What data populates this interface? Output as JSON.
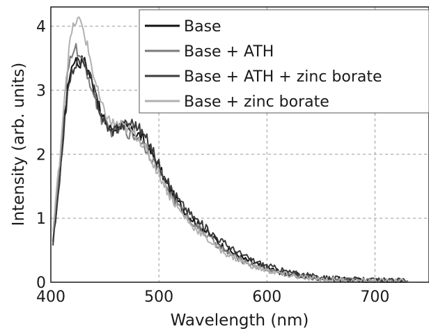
{
  "chart_data": {
    "type": "line",
    "xlabel": "Wavelength (nm)",
    "ylabel": "Intensity (arb. units)",
    "xlim": [
      400,
      750
    ],
    "ylim": [
      0,
      4.3
    ],
    "x_ticks": [
      400,
      500,
      600,
      700
    ],
    "y_ticks": [
      0,
      1,
      2,
      3,
      4
    ],
    "grid": true,
    "legend_position": "top-right",
    "series": [
      {
        "name": "Base",
        "color": "#111111",
        "points": [
          [
            402,
            0.6
          ],
          [
            408,
            1.6
          ],
          [
            413,
            2.7
          ],
          [
            418,
            3.3
          ],
          [
            422,
            3.5
          ],
          [
            426,
            3.4
          ],
          [
            430,
            3.5
          ],
          [
            435,
            3.3
          ],
          [
            440,
            3.0
          ],
          [
            447,
            2.6
          ],
          [
            455,
            2.4
          ],
          [
            465,
            2.45
          ],
          [
            475,
            2.35
          ],
          [
            482,
            2.3
          ],
          [
            490,
            2.1
          ],
          [
            500,
            1.8
          ],
          [
            510,
            1.45
          ],
          [
            520,
            1.2
          ],
          [
            530,
            1.0
          ],
          [
            540,
            0.85
          ],
          [
            550,
            0.7
          ],
          [
            560,
            0.55
          ],
          [
            570,
            0.45
          ],
          [
            580,
            0.35
          ],
          [
            590,
            0.28
          ],
          [
            600,
            0.22
          ],
          [
            620,
            0.13
          ],
          [
            640,
            0.08
          ],
          [
            660,
            0.05
          ],
          [
            680,
            0.03
          ],
          [
            700,
            0.02
          ],
          [
            730,
            0.01
          ]
        ]
      },
      {
        "name": "Base + ATH",
        "color": "#7a7a7a",
        "points": [
          [
            402,
            0.7
          ],
          [
            408,
            1.7
          ],
          [
            413,
            2.9
          ],
          [
            418,
            3.5
          ],
          [
            422,
            3.7
          ],
          [
            426,
            3.55
          ],
          [
            430,
            3.4
          ],
          [
            435,
            3.2
          ],
          [
            440,
            2.9
          ],
          [
            447,
            2.55
          ],
          [
            455,
            2.35
          ],
          [
            465,
            2.4
          ],
          [
            475,
            2.3
          ],
          [
            482,
            2.25
          ],
          [
            490,
            2.05
          ],
          [
            500,
            1.75
          ],
          [
            510,
            1.4
          ],
          [
            520,
            1.15
          ],
          [
            530,
            0.95
          ],
          [
            540,
            0.8
          ],
          [
            550,
            0.65
          ],
          [
            560,
            0.5
          ],
          [
            570,
            0.4
          ],
          [
            580,
            0.32
          ],
          [
            590,
            0.25
          ],
          [
            600,
            0.2
          ],
          [
            620,
            0.12
          ],
          [
            640,
            0.07
          ],
          [
            660,
            0.04
          ],
          [
            680,
            0.03
          ],
          [
            700,
            0.02
          ],
          [
            730,
            0.01
          ]
        ]
      },
      {
        "name": "Base + ATH + zinc borate",
        "color": "#3a3a3a",
        "points": [
          [
            402,
            0.6
          ],
          [
            408,
            1.5
          ],
          [
            413,
            2.6
          ],
          [
            418,
            3.2
          ],
          [
            422,
            3.4
          ],
          [
            426,
            3.45
          ],
          [
            430,
            3.4
          ],
          [
            435,
            3.3
          ],
          [
            440,
            3.0
          ],
          [
            447,
            2.6
          ],
          [
            455,
            2.35
          ],
          [
            465,
            2.45
          ],
          [
            475,
            2.5
          ],
          [
            482,
            2.4
          ],
          [
            490,
            2.2
          ],
          [
            500,
            1.85
          ],
          [
            510,
            1.5
          ],
          [
            520,
            1.25
          ],
          [
            530,
            1.05
          ],
          [
            540,
            0.9
          ],
          [
            550,
            0.75
          ],
          [
            560,
            0.62
          ],
          [
            570,
            0.5
          ],
          [
            580,
            0.4
          ],
          [
            590,
            0.32
          ],
          [
            600,
            0.26
          ],
          [
            620,
            0.16
          ],
          [
            640,
            0.1
          ],
          [
            660,
            0.06
          ],
          [
            680,
            0.04
          ],
          [
            700,
            0.03
          ],
          [
            730,
            0.02
          ]
        ]
      },
      {
        "name": "Base + zinc borate",
        "color": "#b0b0b0",
        "points": [
          [
            402,
            0.8
          ],
          [
            408,
            1.9
          ],
          [
            413,
            3.0
          ],
          [
            418,
            3.8
          ],
          [
            422,
            4.05
          ],
          [
            426,
            4.1
          ],
          [
            430,
            3.95
          ],
          [
            435,
            3.6
          ],
          [
            440,
            3.2
          ],
          [
            447,
            2.75
          ],
          [
            455,
            2.5
          ],
          [
            465,
            2.45
          ],
          [
            475,
            2.35
          ],
          [
            482,
            2.25
          ],
          [
            490,
            2.0
          ],
          [
            500,
            1.7
          ],
          [
            510,
            1.35
          ],
          [
            520,
            1.1
          ],
          [
            530,
            0.9
          ],
          [
            540,
            0.75
          ],
          [
            550,
            0.6
          ],
          [
            560,
            0.47
          ],
          [
            570,
            0.38
          ],
          [
            580,
            0.3
          ],
          [
            590,
            0.23
          ],
          [
            600,
            0.18
          ],
          [
            620,
            0.11
          ],
          [
            640,
            0.06
          ],
          [
            660,
            0.04
          ],
          [
            680,
            0.02
          ],
          [
            700,
            0.02
          ],
          [
            730,
            0.01
          ]
        ]
      }
    ]
  }
}
